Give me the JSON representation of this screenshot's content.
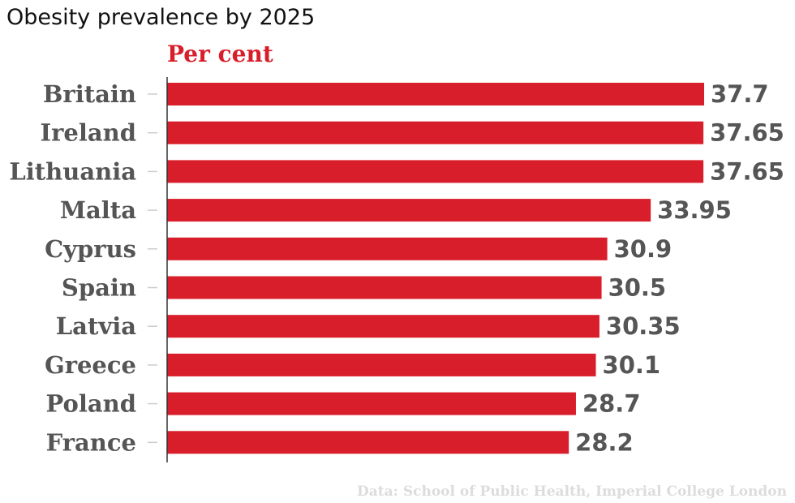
{
  "chart_data": {
    "type": "bar",
    "orientation": "horizontal",
    "title": "Obesity prevalence by 2025",
    "unit_label": "Per cent",
    "source": "Data: School of Public Health, Imperial College London",
    "categories": [
      "Britain",
      "Ireland",
      "Lithuania",
      "Malta",
      "Cyprus",
      "Spain",
      "Latvia",
      "Greece",
      "Poland",
      "France"
    ],
    "values": [
      37.7,
      37.65,
      37.65,
      33.95,
      30.9,
      30.5,
      30.35,
      30.1,
      28.7,
      28.2
    ],
    "value_labels": [
      "37.7",
      "37.65",
      "37.65",
      "33.95",
      "30.9",
      "30.5",
      "30.35",
      "30.1",
      "28.7",
      "28.2"
    ],
    "xlim": [
      0,
      37.7
    ],
    "grid": false,
    "colors": {
      "bar": "#d81e2a",
      "label": "#555555",
      "source": "#dcdcdc"
    }
  }
}
